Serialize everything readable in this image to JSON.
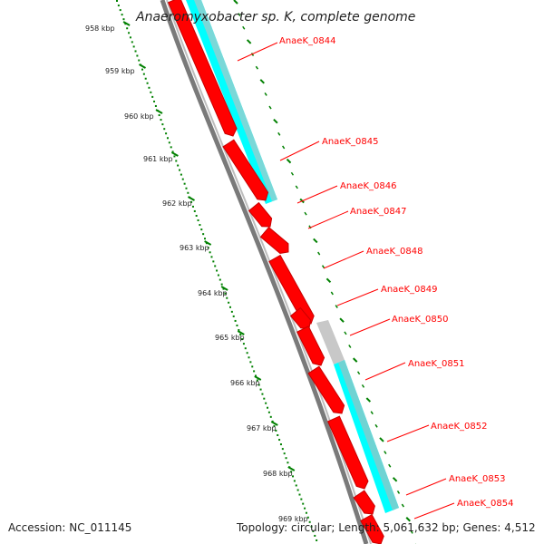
{
  "map": {
    "title": "Anaeromyxobacter sp. K, complete genome",
    "accession_label": "Accession: NC_011145",
    "topology_label": "Topology: circular; Length: 5,061,632 bp; Genes: 4,512",
    "colors": {
      "backbone": "#888888",
      "forward_gene": "#ff0000",
      "reverse_gene": "#00ffff",
      "other_feature": "#c8c8c8",
      "tick": "#008000",
      "label": "#ff0000"
    },
    "scale_labels": [
      "958 kbp",
      "959 kbp",
      "960 kbp",
      "961 kbp",
      "962 kbp",
      "963 kbp",
      "964 kbp",
      "965 kbp",
      "966 kbp",
      "967 kbp",
      "968 kbp",
      "969 kbp"
    ],
    "genes": [
      "AnaeK_0844",
      "AnaeK_0845",
      "AnaeK_0846",
      "AnaeK_0847",
      "AnaeK_0848",
      "AnaeK_0849",
      "AnaeK_0850",
      "AnaeK_0851",
      "AnaeK_0852",
      "AnaeK_0853",
      "AnaeK_0854"
    ]
  }
}
